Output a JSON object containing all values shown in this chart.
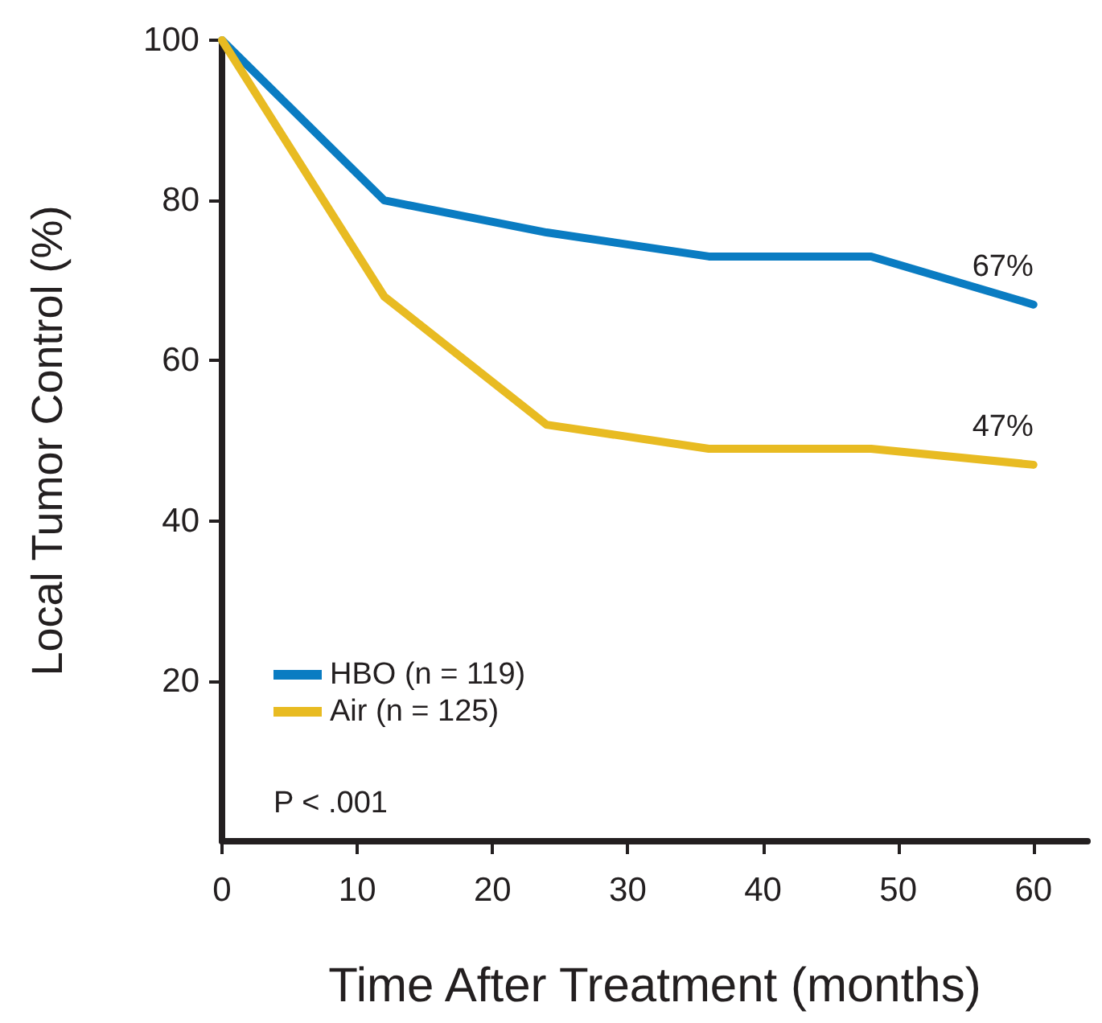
{
  "chart_data": {
    "type": "line",
    "xlabel": "Time After Treatment (months)",
    "ylabel": "Local Tumor Control (%)",
    "x": [
      0,
      12,
      24,
      36,
      48,
      60
    ],
    "series": [
      {
        "name": "HBO (n = 119)",
        "color": "#0a7cc2",
        "values": [
          100,
          80,
          76,
          73,
          73,
          67
        ]
      },
      {
        "name": "Air (n = 125)",
        "color": "#e8bb22",
        "values": [
          100,
          68,
          52,
          49,
          49,
          47
        ]
      }
    ],
    "xlim": [
      0,
      64
    ],
    "xticks": [
      0,
      10,
      20,
      30,
      40,
      50,
      60
    ],
    "ylim": [
      0,
      100
    ],
    "yticks": [
      20,
      40,
      60,
      80,
      100
    ],
    "annotations": [
      {
        "text": "67%",
        "x": 60,
        "y": 67
      },
      {
        "text": "47%",
        "x": 60,
        "y": 47
      },
      "P < .001"
    ],
    "legend": "bottom left",
    "grid": false,
    "marker": "none",
    "line_style": "solid"
  }
}
